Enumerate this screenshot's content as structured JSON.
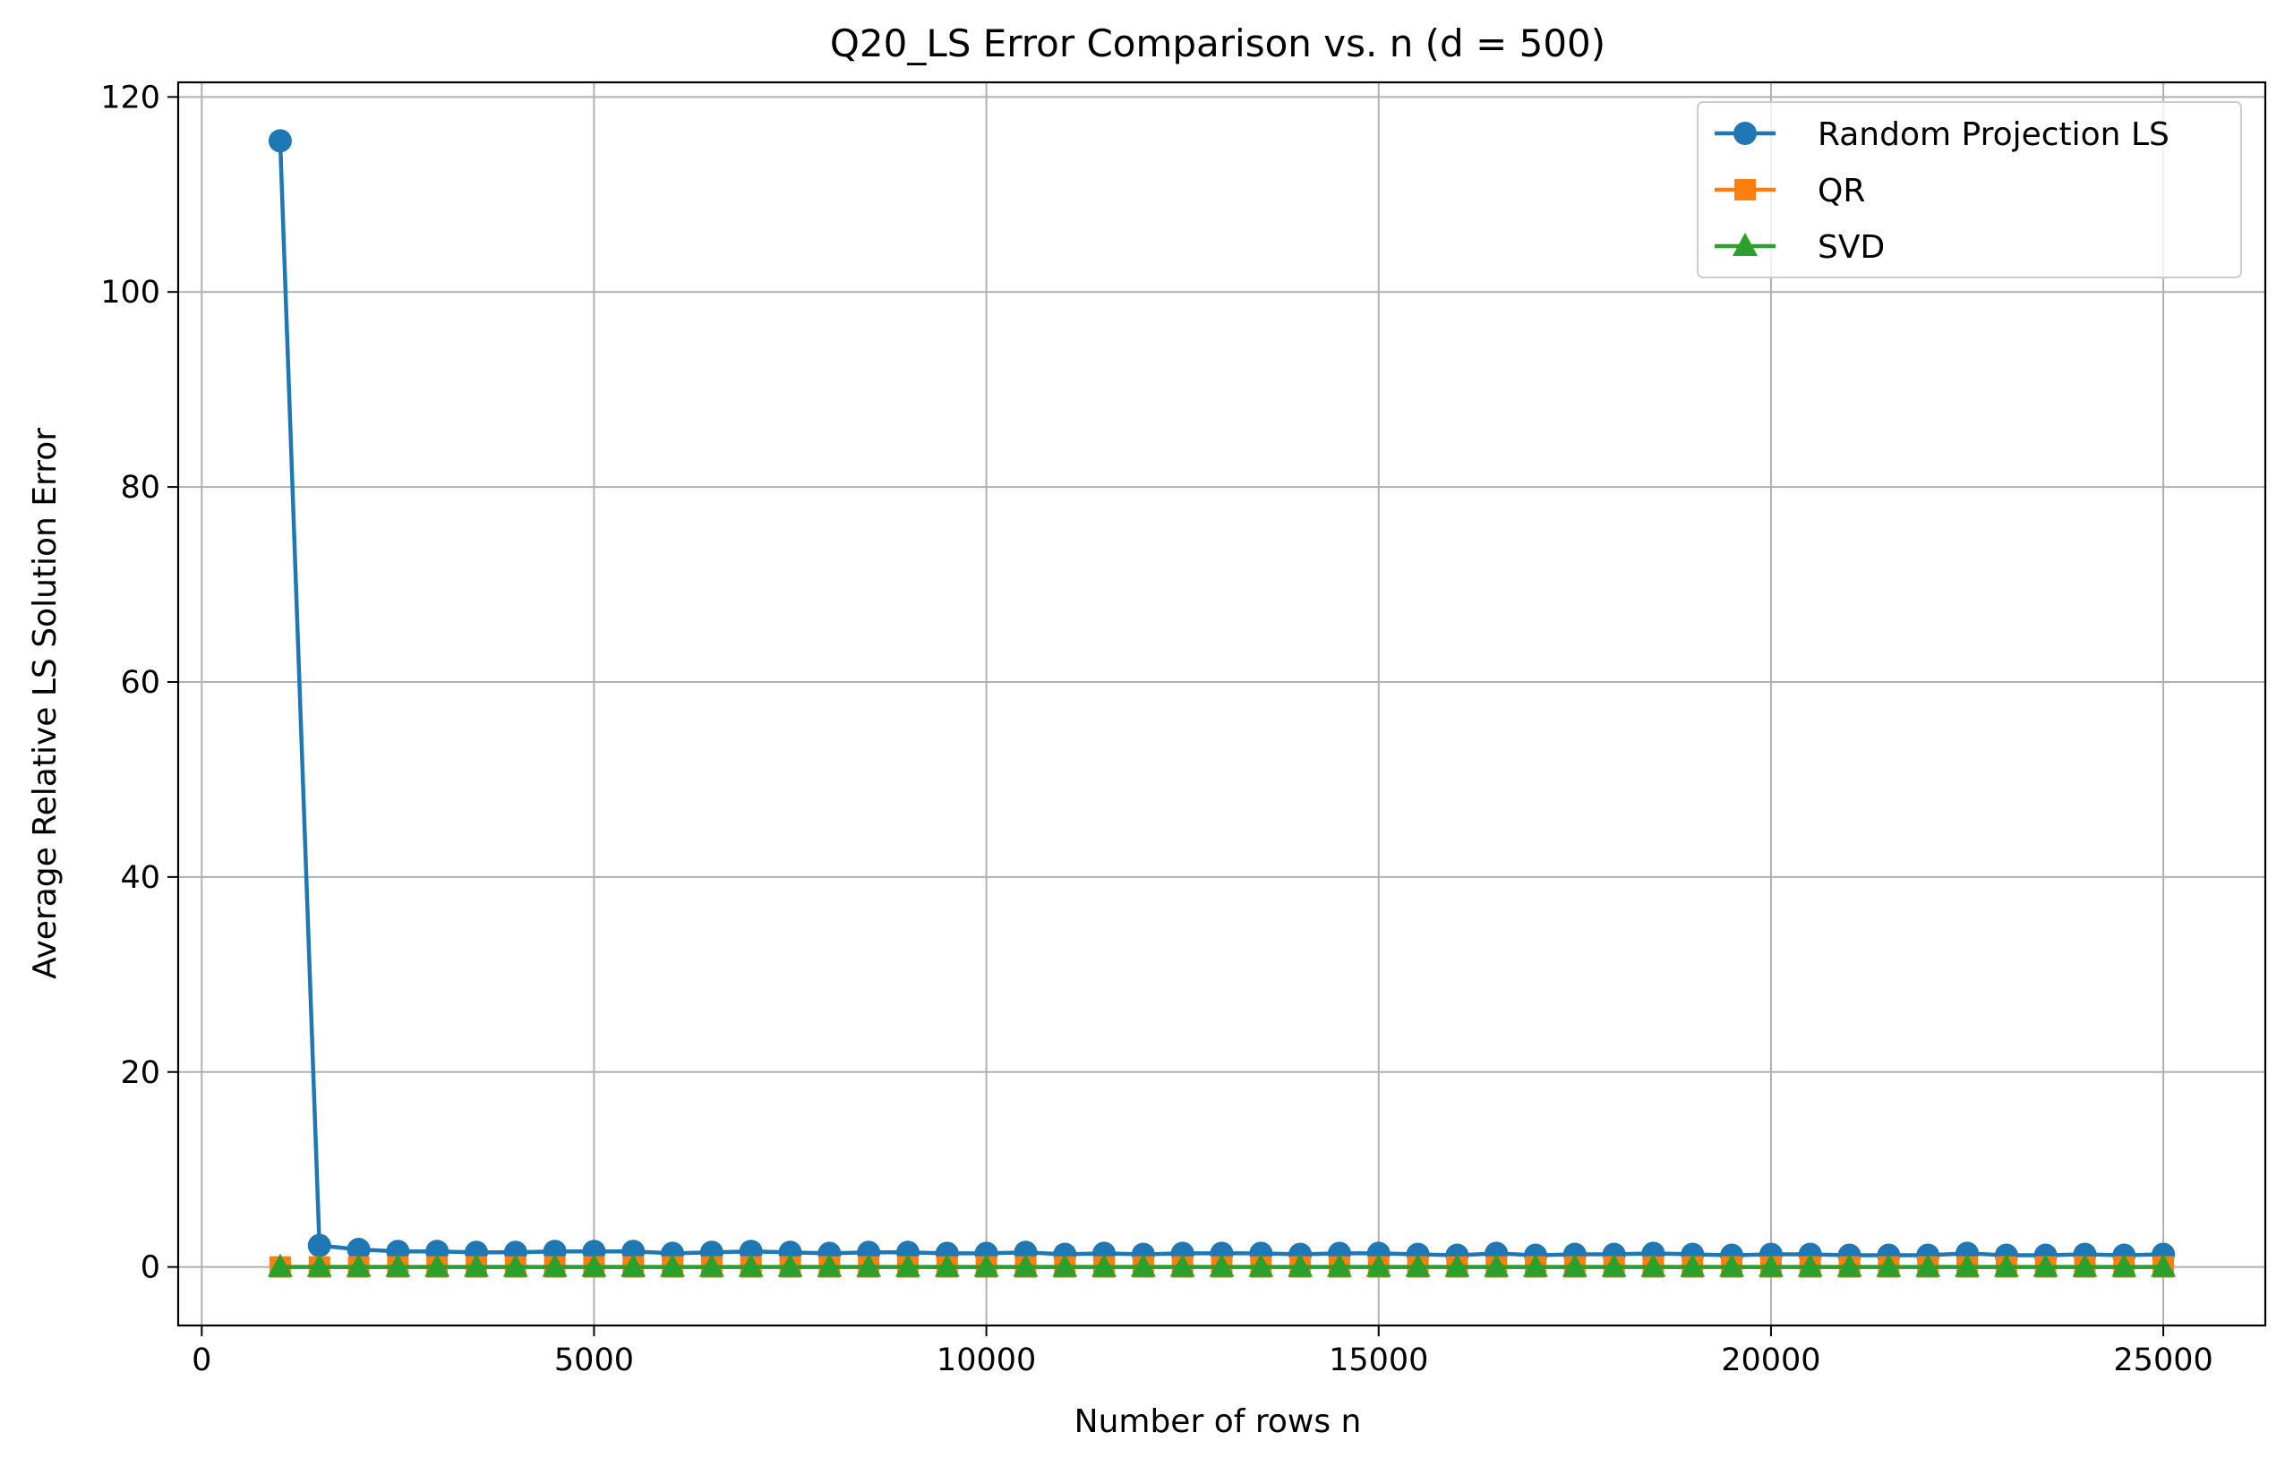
{
  "chart_data": {
    "type": "line",
    "title": "Q20_LS Error Comparison vs. n (d = 500)",
    "xlabel": "Number of rows n",
    "ylabel": "Average Relative LS Solution Error",
    "xlim": [
      -300,
      26300
    ],
    "ylim": [
      -6,
      121.5
    ],
    "xticks": [
      0,
      5000,
      10000,
      15000,
      20000,
      25000
    ],
    "yticks": [
      0,
      20,
      40,
      60,
      80,
      100,
      120
    ],
    "grid": true,
    "legend_position": "top-right",
    "x": [
      1000,
      1500,
      2000,
      2500,
      3000,
      3500,
      4000,
      4500,
      5000,
      5500,
      6000,
      6500,
      7000,
      7500,
      8000,
      8500,
      9000,
      9500,
      10000,
      10500,
      11000,
      11500,
      12000,
      12500,
      13000,
      13500,
      14000,
      14500,
      15000,
      15500,
      16000,
      16500,
      17000,
      17500,
      18000,
      18500,
      19000,
      19500,
      20000,
      20500,
      21000,
      21500,
      22000,
      22500,
      23000,
      23500,
      24000,
      24500,
      25000
    ],
    "series": [
      {
        "name": "Random Projection LS",
        "color": "#1f77b4",
        "marker": "circle",
        "values": [
          115.5,
          2.2,
          1.8,
          1.6,
          1.6,
          1.5,
          1.5,
          1.6,
          1.6,
          1.6,
          1.4,
          1.5,
          1.6,
          1.5,
          1.4,
          1.5,
          1.5,
          1.4,
          1.4,
          1.5,
          1.3,
          1.4,
          1.3,
          1.4,
          1.4,
          1.4,
          1.3,
          1.4,
          1.4,
          1.3,
          1.2,
          1.4,
          1.2,
          1.3,
          1.3,
          1.4,
          1.3,
          1.2,
          1.3,
          1.3,
          1.2,
          1.2,
          1.2,
          1.4,
          1.2,
          1.2,
          1.3,
          1.2,
          1.3
        ]
      },
      {
        "name": "QR",
        "color": "#ff7f0e",
        "marker": "square",
        "values": [
          0,
          0,
          0,
          0,
          0,
          0,
          0,
          0,
          0,
          0,
          0,
          0,
          0,
          0,
          0,
          0,
          0,
          0,
          0,
          0,
          0,
          0,
          0,
          0,
          0,
          0,
          0,
          0,
          0,
          0,
          0,
          0,
          0,
          0,
          0,
          0,
          0,
          0,
          0,
          0,
          0,
          0,
          0,
          0,
          0,
          0,
          0,
          0,
          0
        ]
      },
      {
        "name": "SVD",
        "color": "#2ca02c",
        "marker": "triangle",
        "values": [
          0,
          0,
          0,
          0,
          0,
          0,
          0,
          0,
          0,
          0,
          0,
          0,
          0,
          0,
          0,
          0,
          0,
          0,
          0,
          0,
          0,
          0,
          0,
          0,
          0,
          0,
          0,
          0,
          0,
          0,
          0,
          0,
          0,
          0,
          0,
          0,
          0,
          0,
          0,
          0,
          0,
          0,
          0,
          0,
          0,
          0,
          0,
          0,
          0
        ]
      }
    ]
  }
}
